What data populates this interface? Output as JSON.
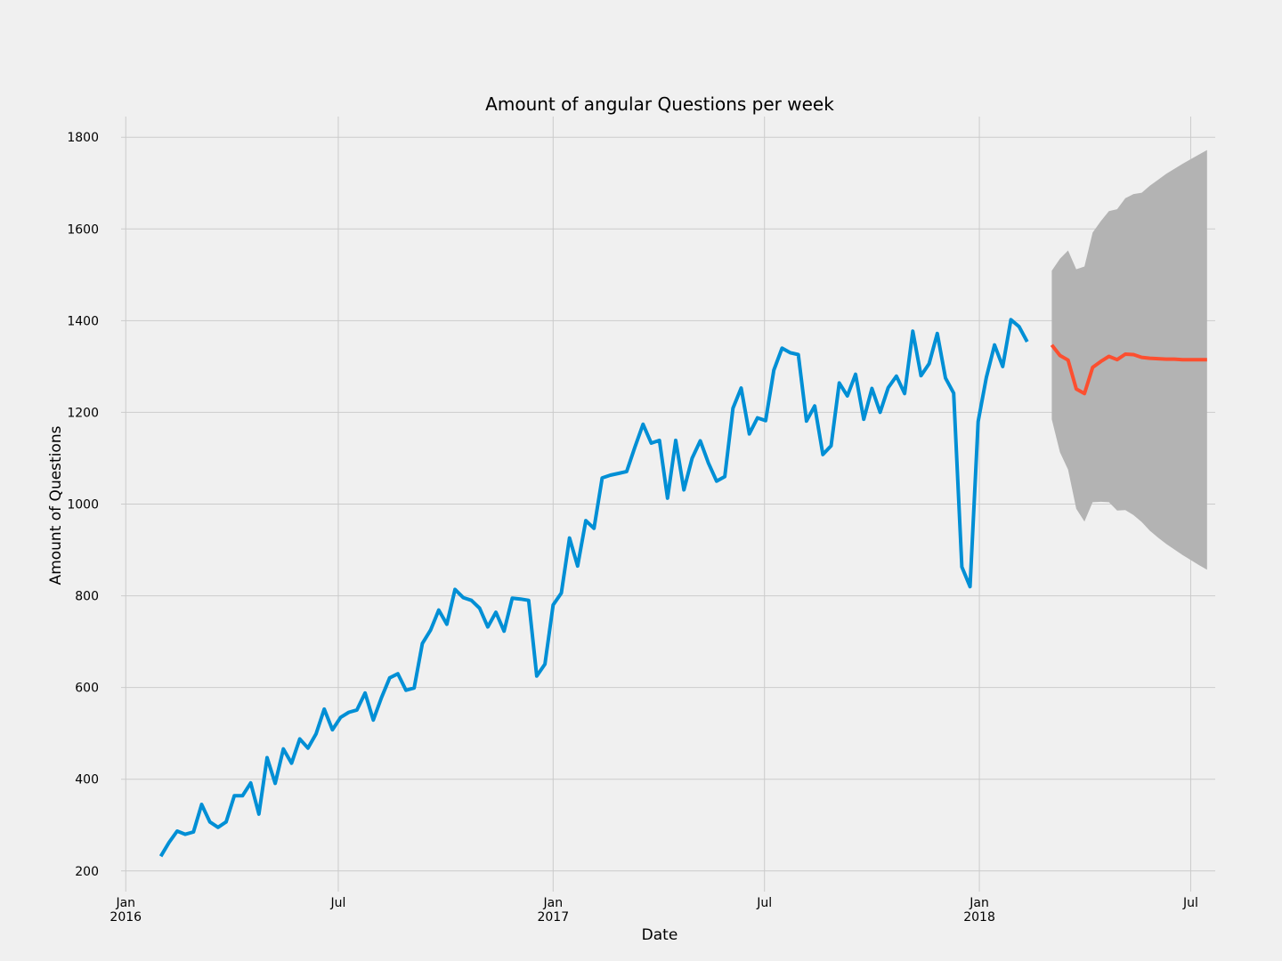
{
  "chart_data": {
    "type": "line",
    "title": "Amount of angular Questions per week",
    "xlabel": "Date",
    "ylabel": "Amount of Questions",
    "xlim": [
      "2015-12-28",
      "2018-07-22"
    ],
    "ylim": [
      155,
      1845
    ],
    "grid": true,
    "y_ticks": [
      200,
      400,
      600,
      800,
      1000,
      1200,
      1400,
      1600,
      1800
    ],
    "x_ticks": [
      {
        "date": "2016-01-01",
        "label": "Jan",
        "sublabel": "2016"
      },
      {
        "date": "2016-07-01",
        "label": "Jul",
        "sublabel": ""
      },
      {
        "date": "2017-01-01",
        "label": "Jan",
        "sublabel": "2017"
      },
      {
        "date": "2017-07-01",
        "label": "Jul",
        "sublabel": ""
      },
      {
        "date": "2018-01-01",
        "label": "Jan",
        "sublabel": "2018"
      },
      {
        "date": "2018-07-01",
        "label": "Jul",
        "sublabel": ""
      }
    ],
    "colors": {
      "observed": "#008fd5",
      "forecast": "#fc4f30",
      "band": "#b3b3b3"
    },
    "series": [
      {
        "role": "observed",
        "x_start": "2016-01-31",
        "x_step_days": 7,
        "values": [
          232,
          262,
          287,
          280,
          285,
          345,
          307,
          295,
          307,
          364,
          364,
          392,
          324,
          447,
          391,
          466,
          435,
          488,
          468,
          499,
          553,
          508,
          535,
          546,
          551,
          588,
          529,
          578,
          621,
          630,
          594,
          599,
          696,
          725,
          769,
          738,
          814,
          796,
          790,
          773,
          732,
          764,
          723,
          795,
          793,
          790,
          625,
          651,
          780,
          806,
          926,
          865,
          964,
          947,
          1057,
          1063,
          1067,
          1071,
          1124,
          1174,
          1133,
          1139,
          1013,
          1139,
          1031,
          1100,
          1138,
          1089,
          1050,
          1060,
          1209,
          1253,
          1153,
          1188,
          1182,
          1292,
          1340,
          1330,
          1326,
          1181,
          1214,
          1108,
          1127,
          1264,
          1236,
          1283,
          1185,
          1252,
          1200,
          1254,
          1279,
          1241,
          1377,
          1280,
          1306,
          1372,
          1275,
          1242,
          863,
          820,
          1180,
          1276,
          1347,
          1300,
          1402,
          1387,
          1354
        ]
      },
      {
        "role": "forecast",
        "x_start": "2018-03-04",
        "x_step_days": 7,
        "values": [
          1347,
          1324,
          1314,
          1251,
          1241,
          1298,
          1311,
          1322,
          1315,
          1327,
          1326,
          1320,
          1318,
          1317,
          1316,
          1316,
          1315,
          1315,
          1315,
          1315
        ]
      }
    ],
    "confidence_band": {
      "x_start": "2018-03-04",
      "x_step_days": 7,
      "upper": [
        1509,
        1535,
        1553,
        1512,
        1518,
        1592,
        1617,
        1639,
        1643,
        1667,
        1676,
        1679,
        1694,
        1707,
        1720,
        1731,
        1742,
        1752,
        1762,
        1772
      ],
      "lower": [
        1185,
        1113,
        1075,
        990,
        962,
        1004,
        1005,
        1004,
        986,
        987,
        976,
        961,
        942,
        927,
        913,
        901,
        889,
        878,
        867,
        857
      ]
    }
  }
}
